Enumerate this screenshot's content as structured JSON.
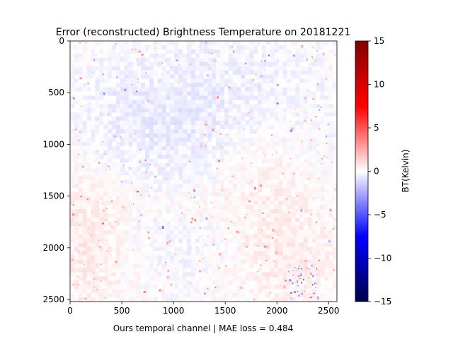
{
  "chart_data": {
    "type": "heatmap",
    "title": "Error (reconstructed) Brightness Temperature on 20181221",
    "xlabel": "Ours temporal channel | MAE loss = 0.484",
    "ylabel": "",
    "x_range": [
      0,
      2580
    ],
    "y_range": [
      0,
      2520
    ],
    "y_inverted": true,
    "x_ticks": [
      0,
      500,
      1000,
      1500,
      2000,
      2500
    ],
    "y_ticks": [
      0,
      500,
      1000,
      1500,
      2000,
      2500
    ],
    "colormap": "seismic",
    "colorbar": {
      "label": "BT(Kelvin)",
      "range": [
        -15,
        15
      ],
      "ticks": [
        15,
        10,
        5,
        0,
        -5,
        -10,
        -15
      ],
      "tick_labels": [
        "15",
        "10",
        "5",
        "0",
        "−5",
        "−10",
        "−15"
      ]
    },
    "description_of_field": "mostly near-zero error; light blue (negative) in upper and central regions, light red (positive) in lower-left and lower-right; scattered stronger red speckles and a small blue streak near x≈2100-2400, y≈2150-2500",
    "grid": false
  },
  "colors": {
    "low": "#00004c",
    "mid": "#ffffff",
    "high": "#800000"
  }
}
